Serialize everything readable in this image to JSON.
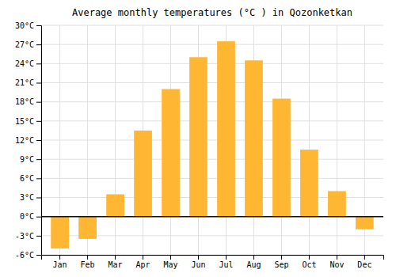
{
  "chart_data": {
    "type": "bar",
    "title": "Average monthly temperatures (°C ) in Qozonketkan",
    "categories": [
      "Jan",
      "Feb",
      "Mar",
      "Apr",
      "May",
      "Jun",
      "Jul",
      "Aug",
      "Sep",
      "Oct",
      "Nov",
      "Dec"
    ],
    "values": [
      -5.0,
      -3.5,
      3.5,
      13.5,
      20.0,
      25.0,
      27.5,
      24.5,
      18.5,
      10.5,
      4.0,
      -2.0
    ],
    "color": "#FFB733",
    "ylim": [
      -6,
      30
    ],
    "yticks": [
      {
        "value": -6,
        "label": "-6°C"
      },
      {
        "value": -3,
        "label": "-3°C"
      },
      {
        "value": 0,
        "label": "0°C"
      },
      {
        "value": 3,
        "label": "3°C"
      },
      {
        "value": 6,
        "label": "6°C"
      },
      {
        "value": 9,
        "label": "9°C"
      },
      {
        "value": 12,
        "label": "12°C"
      },
      {
        "value": 15,
        "label": "15°C"
      },
      {
        "value": 18,
        "label": "18°C"
      },
      {
        "value": 21,
        "label": "21°C"
      },
      {
        "value": 24,
        "label": "24°C"
      },
      {
        "value": 27,
        "label": "27°C"
      },
      {
        "value": 30,
        "label": "30°C"
      }
    ],
    "grid": true
  }
}
